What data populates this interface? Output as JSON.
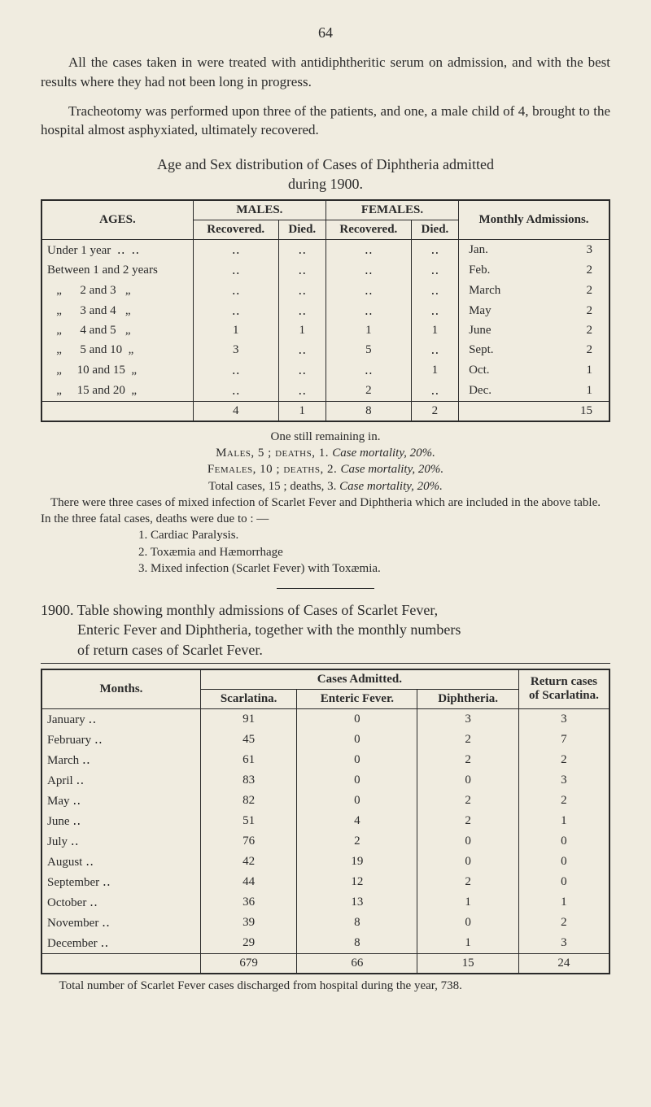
{
  "pageNumber": "64",
  "para1": "All the cases taken in were treated with antidiphtheritic serum on admission, and with the best results where they had not been long in progress.",
  "para2": "Tracheotomy was performed upon three of the patients, and one, a male child of 4, brought to the hospital almost asphyxiated, ultimately recovered.",
  "heading1_a": "Age and Sex distribution of Cases of Diphtheria admitted",
  "heading1_b": "during 1900.",
  "table1": {
    "hdr_ages": "AGES.",
    "hdr_males": "MALES.",
    "hdr_females": "FEMALES.",
    "hdr_monthly": "Monthly Admissions.",
    "hdr_recov": "Recovered.",
    "hdr_died": "Died.",
    "rows": [
      {
        "label": "Under 1 year  ‥  ‥",
        "mr": "‥",
        "md": "‥",
        "fr": "‥",
        "fd": "‥",
        "mon": "Jan.",
        "mv": "3"
      },
      {
        "label": "Between 1 and 2 years",
        "mr": "‥",
        "md": "‥",
        "fr": "‥",
        "fd": "‥",
        "mon": "Feb.",
        "mv": "2"
      },
      {
        "label": "   „      2 and 3   „",
        "mr": "‥",
        "md": "‥",
        "fr": "‥",
        "fd": "‥",
        "mon": "March",
        "mv": "2"
      },
      {
        "label": "   „      3 and 4   „",
        "mr": "‥",
        "md": "‥",
        "fr": "‥",
        "fd": "‥",
        "mon": "May",
        "mv": "2"
      },
      {
        "label": "   „      4 and 5   „",
        "mr": "1",
        "md": "1",
        "fr": "1",
        "fd": "1",
        "mon": "June",
        "mv": "2"
      },
      {
        "label": "   „      5 and 10  „",
        "mr": "3",
        "md": "‥",
        "fr": "5",
        "fd": "‥",
        "mon": "Sept.",
        "mv": "2"
      },
      {
        "label": "   „     10 and 15  „",
        "mr": "‥",
        "md": "‥",
        "fr": "‥",
        "fd": "1",
        "mon": "Oct.",
        "mv": "1"
      },
      {
        "label": "   „     15 and 20  „",
        "mr": "‥",
        "md": "‥",
        "fr": "2",
        "fd": "‥",
        "mon": "Dec.",
        "mv": "1"
      }
    ],
    "tot_mr": "4",
    "tot_md": "1",
    "tot_fr": "8",
    "tot_fd": "2",
    "tot_mv": "15"
  },
  "notes": {
    "l1": "One still remaining in.",
    "l2a": "Males, 5 ;  deaths, 1.   ",
    "l2b": "Case mortality, 20%.",
    "l3a": "Females, 10 ;  deaths, 2.   ",
    "l3b": "Case mortality, 20%.",
    "l4a": "Total cases, 15 ;  deaths, 3.   ",
    "l4b": "Case mortality, 20%.",
    "l5": "There were three cases of mixed infection of Scarlet Fever and Diphtheria which are included in the above table.",
    "l6": "In the three fatal cases, deaths were due to : —",
    "li1": "1.   Cardiac Paralysis.",
    "li2": "2.   Toxæmia and Hæmorrhage",
    "li3": "3.   Mixed infection (Scarlet Fever) with Toxæmia."
  },
  "heading2": {
    "l1": "1900.  Table showing monthly admissions of Cases of Scarlet Fever,",
    "l2": "Enteric Fever and Diphtheria, together with the monthly numbers",
    "l3": "of return cases of Scarlet Fever."
  },
  "table2": {
    "hdr_months": "Months.",
    "hdr_cases": "Cases Admitted.",
    "hdr_scar": "Scarlatina.",
    "hdr_ent": "Enteric Fever.",
    "hdr_dip": "Diphtheria.",
    "hdr_ret": "Return cases of Scarlatina.",
    "rows": [
      {
        "m": "January",
        "s": "91",
        "e": "0",
        "d": "3",
        "r": "3"
      },
      {
        "m": "February",
        "s": "45",
        "e": "0",
        "d": "2",
        "r": "7"
      },
      {
        "m": "March",
        "s": "61",
        "e": "0",
        "d": "2",
        "r": "2"
      },
      {
        "m": "April",
        "s": "83",
        "e": "0",
        "d": "0",
        "r": "3"
      },
      {
        "m": "May",
        "s": "82",
        "e": "0",
        "d": "2",
        "r": "2"
      },
      {
        "m": "June",
        "s": "51",
        "e": "4",
        "d": "2",
        "r": "1"
      },
      {
        "m": "July",
        "s": "76",
        "e": "2",
        "d": "0",
        "r": "0"
      },
      {
        "m": "August",
        "s": "42",
        "e": "19",
        "d": "0",
        "r": "0"
      },
      {
        "m": "September",
        "s": "44",
        "e": "12",
        "d": "2",
        "r": "0"
      },
      {
        "m": "October",
        "s": "36",
        "e": "13",
        "d": "1",
        "r": "1"
      },
      {
        "m": "November",
        "s": "39",
        "e": "8",
        "d": "0",
        "r": "2"
      },
      {
        "m": "December",
        "s": "29",
        "e": "8",
        "d": "1",
        "r": "3"
      }
    ],
    "tot_s": "679",
    "tot_e": "66",
    "tot_d": "15",
    "tot_r": "24"
  },
  "footnote": "Total number of Scarlet Fever cases discharged from hospital during the year, 738."
}
